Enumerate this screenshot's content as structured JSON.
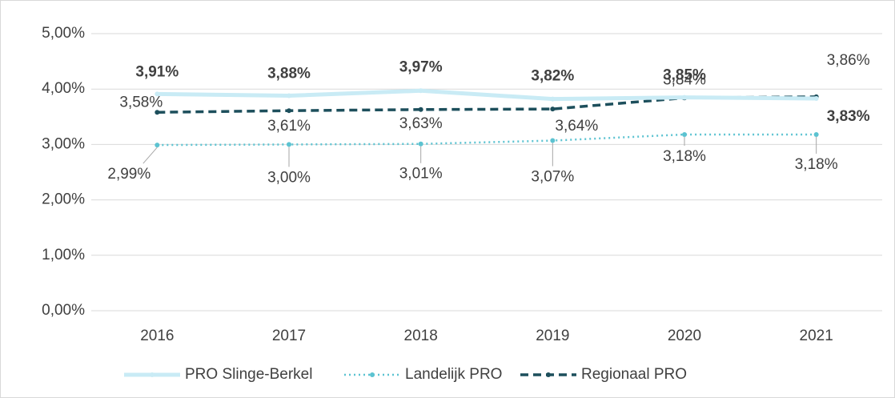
{
  "chart_data": {
    "type": "line",
    "categories": [
      "2016",
      "2017",
      "2018",
      "2019",
      "2020",
      "2021"
    ],
    "series": [
      {
        "name": "PRO Slinge-Berkel",
        "color": "#c9ebf5",
        "style": "solid",
        "values": [
          3.91,
          3.88,
          3.97,
          3.82,
          3.85,
          3.83
        ],
        "value_labels": [
          "3,91%",
          "3,88%",
          "3,97%",
          "3,82%",
          "3,85%",
          "3,83%"
        ]
      },
      {
        "name": "Landelijk PRO",
        "color": "#5cc3d1",
        "style": "dotted",
        "values": [
          2.99,
          3.0,
          3.01,
          3.07,
          3.18,
          3.18
        ],
        "value_labels": [
          "2,99%",
          "3,00%",
          "3,01%",
          "3,07%",
          "3,18%",
          "3,18%"
        ]
      },
      {
        "name": "Regionaal PRO",
        "color": "#1d4f5c",
        "style": "dashed",
        "values": [
          3.58,
          3.61,
          3.63,
          3.64,
          3.84,
          3.86
        ],
        "value_labels": [
          "3,58%",
          "3,61%",
          "3,63%",
          "3,64%",
          "3,84%",
          "3,86%"
        ]
      }
    ],
    "ylim": [
      0,
      5
    ],
    "yticks": [
      {
        "value": 0,
        "label": "0,00%"
      },
      {
        "value": 1,
        "label": "1,00%"
      },
      {
        "value": 2,
        "label": "2,00%"
      },
      {
        "value": 3,
        "label": "3,00%"
      },
      {
        "value": 4,
        "label": "4,00%"
      },
      {
        "value": 5,
        "label": "5,00%"
      }
    ],
    "grid": true,
    "legend": "bottom"
  }
}
